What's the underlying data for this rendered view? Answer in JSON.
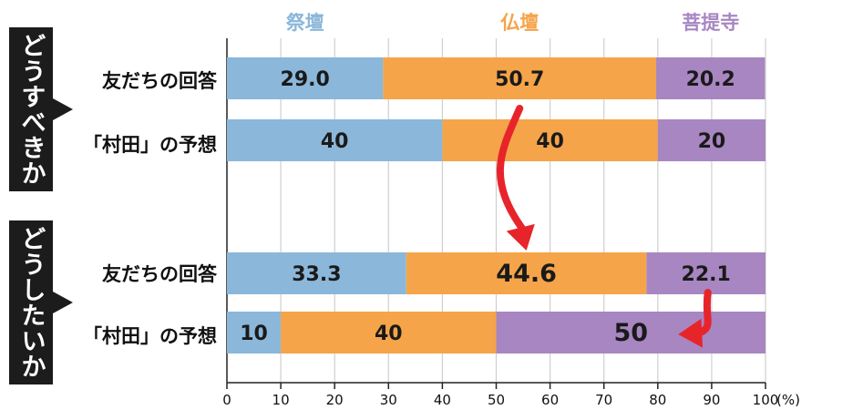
{
  "legend": [
    {
      "label": "祭壇",
      "color": "#8bb7da"
    },
    {
      "label": "仏壇",
      "color": "#f5a44a"
    },
    {
      "label": "菩提寺",
      "color": "#a886c2"
    }
  ],
  "groups": [
    {
      "label": "どうすべきか"
    },
    {
      "label": "どうしたいか"
    }
  ],
  "chart_data": {
    "type": "bar",
    "orientation": "horizontal",
    "stacked": true,
    "categories": [
      "友だちの回答",
      "「村田」の予想",
      "友だちの回答",
      "「村田」の予想"
    ],
    "series": [
      {
        "name": "祭壇",
        "values": [
          29.0,
          40,
          33.3,
          10
        ]
      },
      {
        "name": "仏壇",
        "values": [
          50.7,
          40,
          44.6,
          40
        ]
      },
      {
        "name": "菩提寺",
        "values": [
          20.2,
          20,
          22.1,
          50
        ]
      }
    ],
    "value_labels": [
      [
        "29.0",
        "50.7",
        "20.2"
      ],
      [
        "40",
        "40",
        "20"
      ],
      [
        "33.3",
        "44.6",
        "22.1"
      ],
      [
        "10",
        "40",
        "50"
      ]
    ],
    "xlim": [
      0,
      100
    ],
    "xticks": [
      "0",
      "10",
      "20",
      "30",
      "40",
      "50",
      "60",
      "70",
      "80",
      "90",
      "100"
    ],
    "unit": "(%)",
    "colors": [
      "#8bb7da",
      "#f5a44a",
      "#a886c2"
    ],
    "arrow_color": "#e8242b",
    "annotations": [
      "arrow from 仏壇 50.7 to 仏壇 44.6",
      "arrow from 菩提寺 22.1 to 菩提寺 50"
    ]
  }
}
